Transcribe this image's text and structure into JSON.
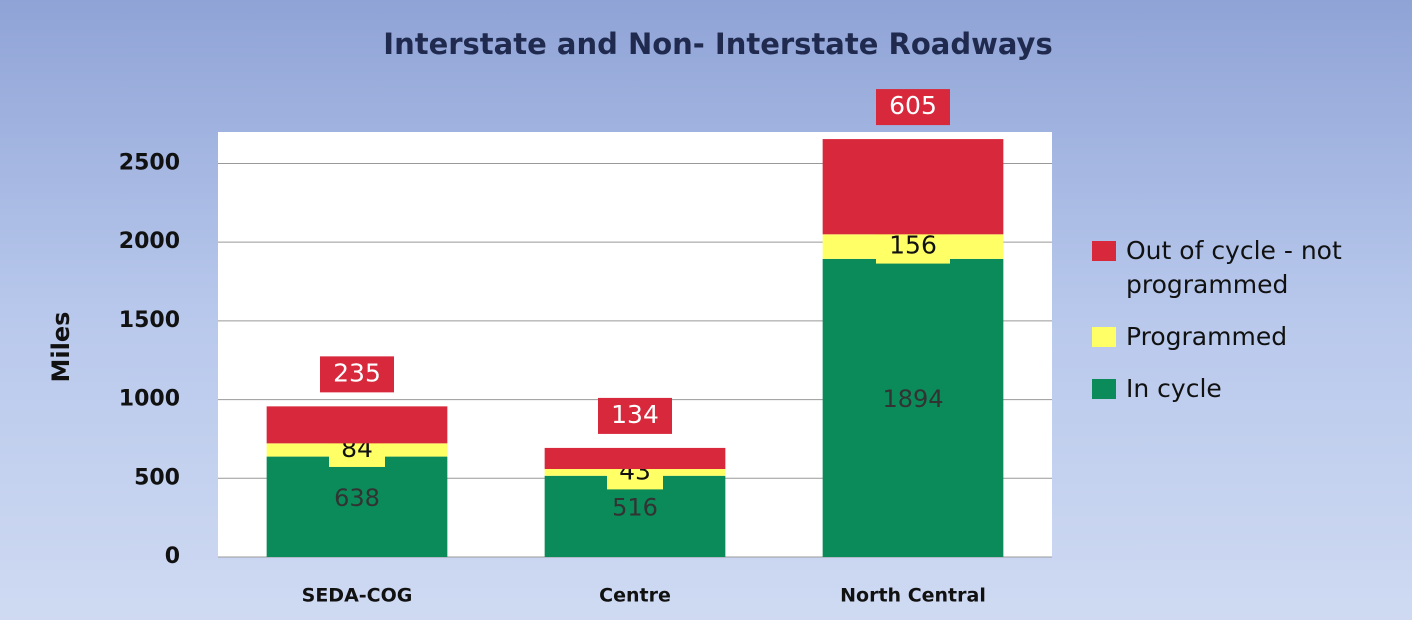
{
  "chart_data": {
    "type": "stacked_bar",
    "title": "Interstate and Non- Interstate Roadways",
    "y_label": "Miles",
    "categories": [
      "SEDA-COG",
      "Centre",
      "North Central"
    ],
    "series": [
      {
        "name": "In cycle",
        "color": "#0b8a5a",
        "values": [
          638,
          516,
          1894
        ]
      },
      {
        "name": "Programmed",
        "color": "#ffff66",
        "values": [
          84,
          43,
          156
        ]
      },
      {
        "name": "Out of cycle - not programmed",
        "color": "#d8283c",
        "values": [
          235,
          134,
          605
        ]
      }
    ],
    "ylim": [
      0,
      2700
    ],
    "yticks": [
      0,
      500,
      1000,
      1500,
      2000,
      2500
    ],
    "grid": true
  }
}
